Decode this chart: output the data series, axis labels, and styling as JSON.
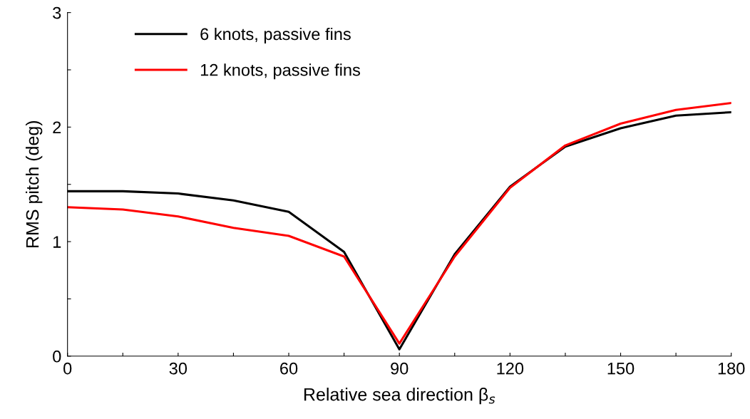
{
  "chart_data": {
    "type": "line",
    "xlabel": "Relative sea direction β$_{s}$",
    "ylabel": "RMS pitch (deg)",
    "x": [
      0,
      15,
      30,
      45,
      60,
      75,
      90,
      105,
      120,
      135,
      150,
      165,
      180
    ],
    "series": [
      {
        "name": "6 knots, passive fins",
        "color": "#000000",
        "values": [
          1.44,
          1.44,
          1.42,
          1.36,
          1.26,
          0.91,
          0.06,
          0.89,
          1.48,
          1.83,
          1.99,
          2.1,
          2.13
        ]
      },
      {
        "name": "12 knots, passive fins",
        "color": "#ff0000",
        "values": [
          1.3,
          1.28,
          1.22,
          1.12,
          1.05,
          0.87,
          0.11,
          0.87,
          1.47,
          1.84,
          2.03,
          2.15,
          2.21
        ]
      }
    ],
    "xlim": [
      0,
      180
    ],
    "ylim": [
      0,
      3
    ],
    "xticks": [
      0,
      {
        "value": 15,
        "label": null
      },
      30,
      {
        "value": 45,
        "label": null
      },
      60,
      {
        "value": 75,
        "label": null
      },
      90,
      {
        "value": 105,
        "label": null
      },
      120,
      {
        "value": 135,
        "label": null
      },
      150,
      {
        "value": 165,
        "label": null
      },
      180
    ],
    "yticks": [
      0,
      {
        "value": 0.5,
        "label": null
      },
      1,
      {
        "value": 1.5,
        "label": null
      },
      2,
      {
        "value": 2.5,
        "label": null
      },
      3
    ],
    "grid": false,
    "legend": "top left",
    "marker": "none",
    "line_style": "solid"
  }
}
